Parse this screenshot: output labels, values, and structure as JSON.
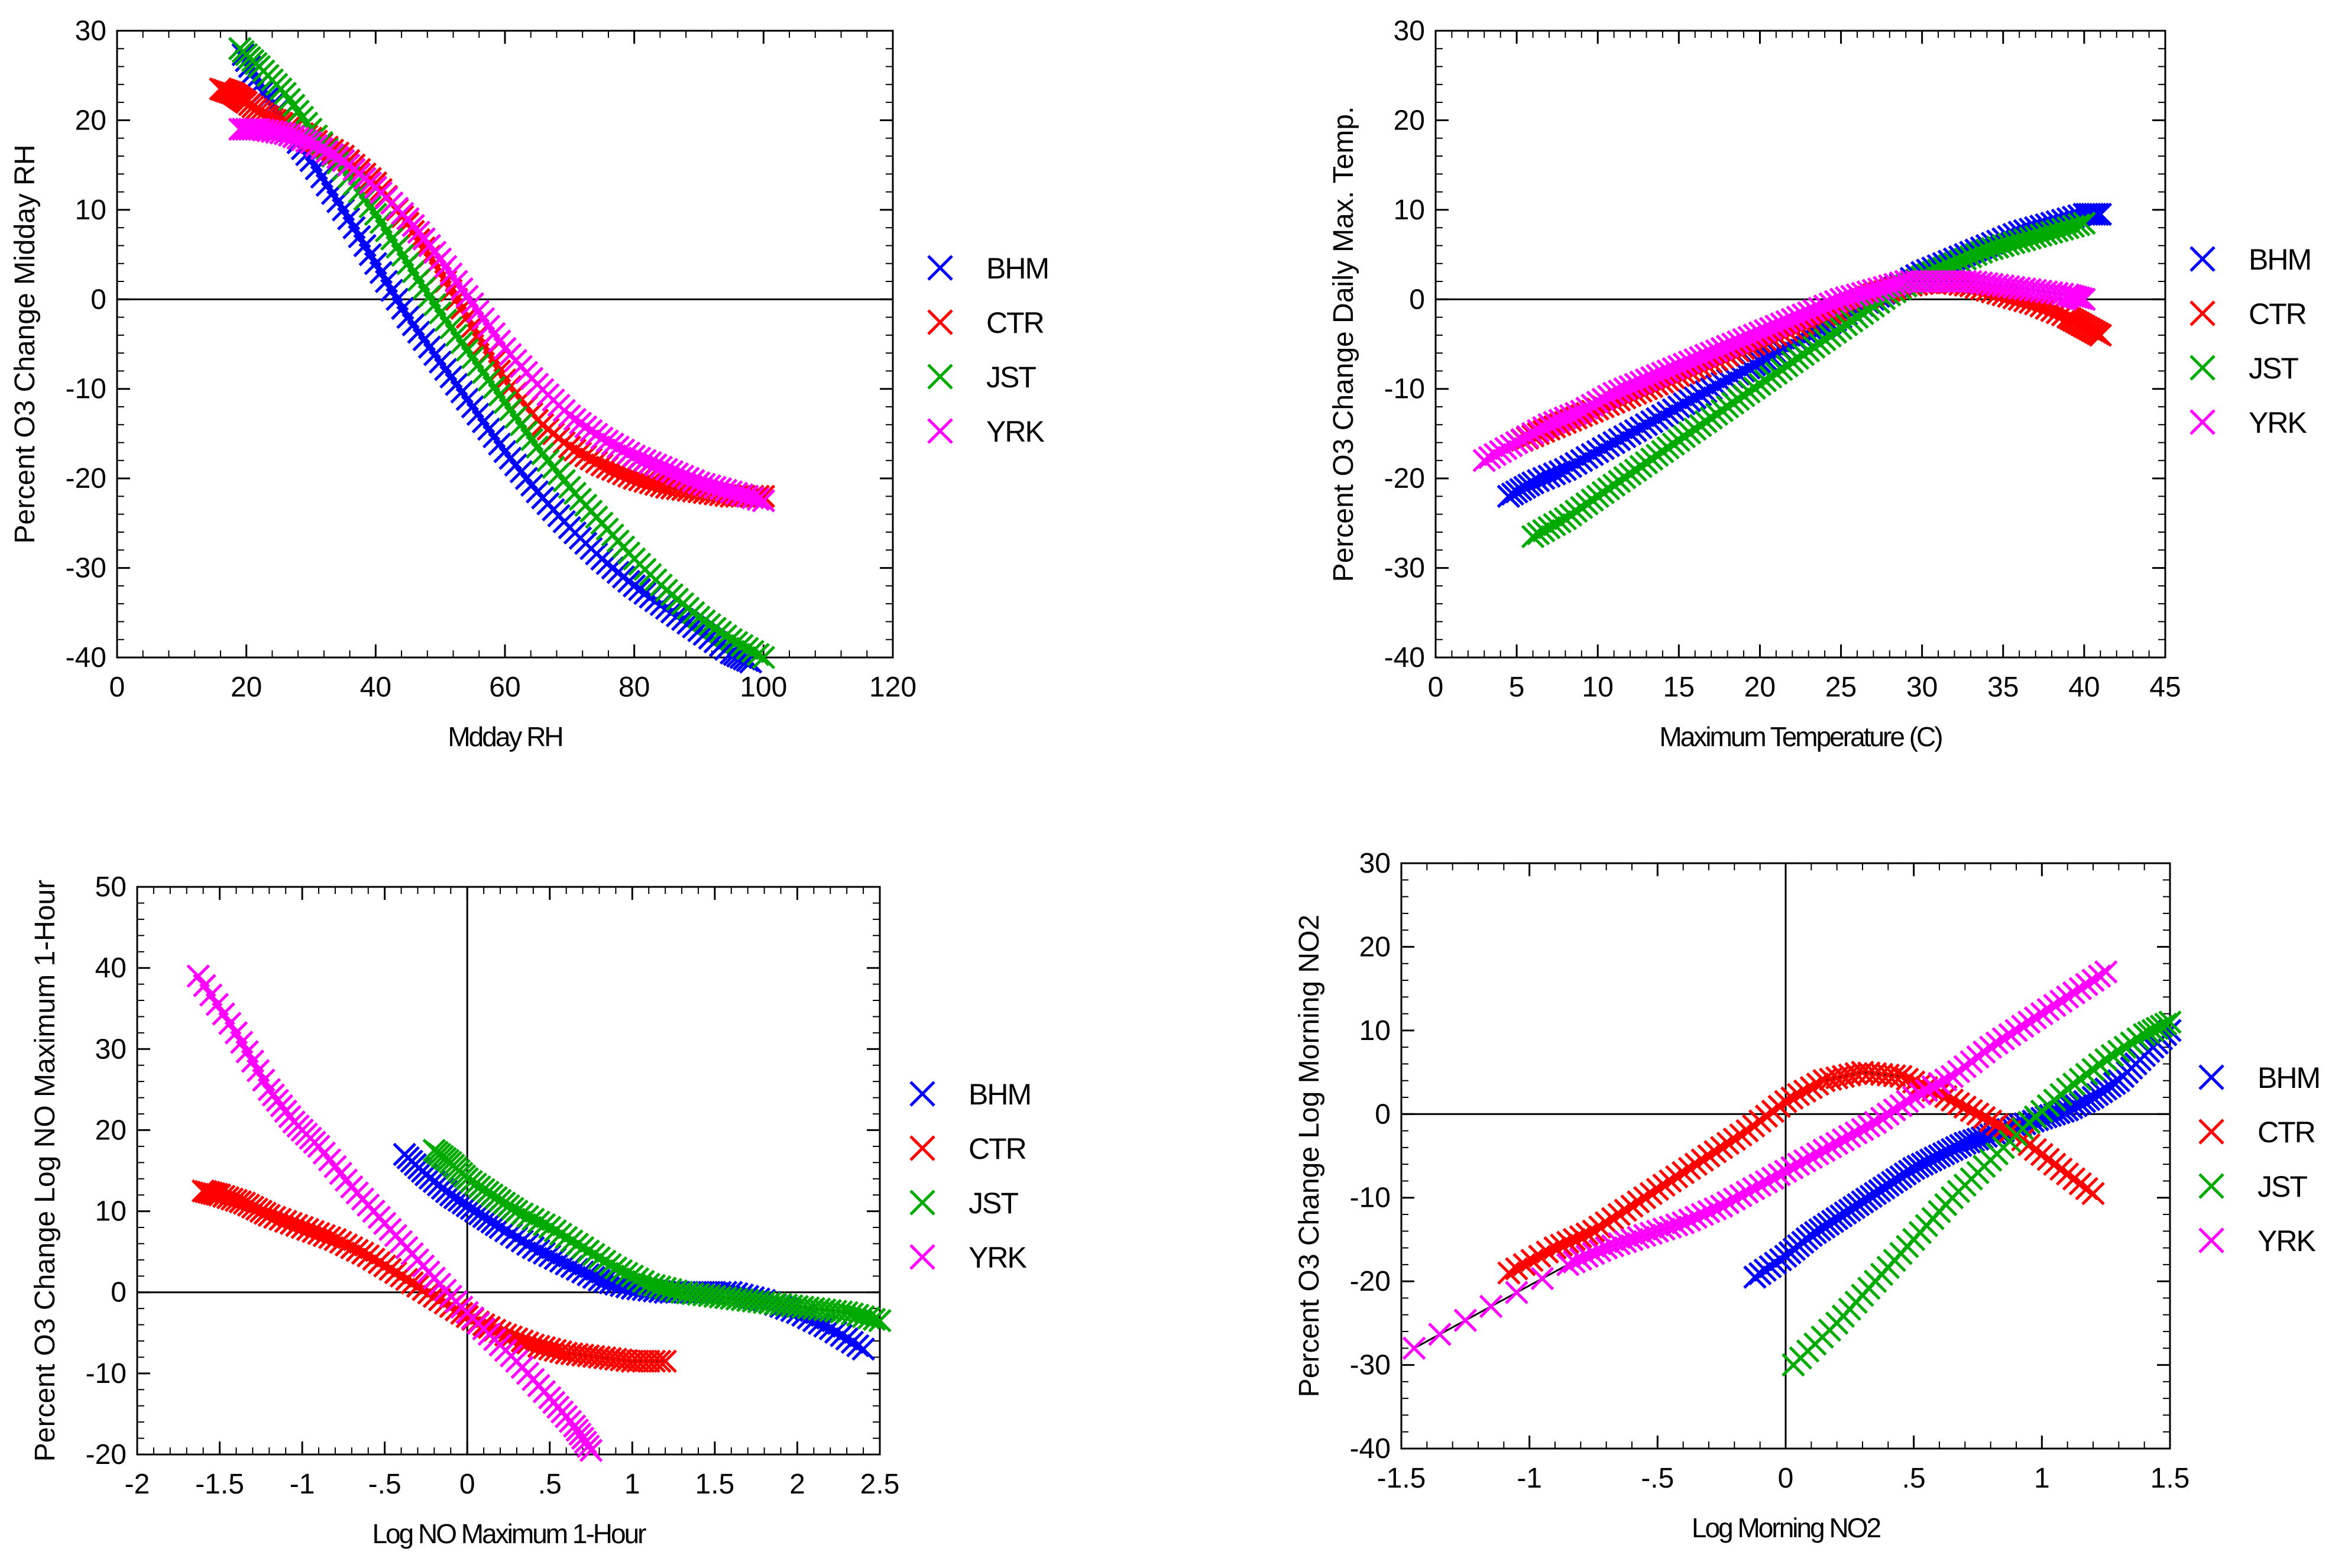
{
  "chart_data": [
    {
      "type": "scatter",
      "panel": "top-left",
      "xlabel": "Mdday RH",
      "ylabel": "Percent O3 Change Midday RH",
      "xlim": [
        0,
        120
      ],
      "ylim": [
        -40,
        30
      ],
      "xticks": [
        0,
        20,
        40,
        60,
        80,
        100,
        120
      ],
      "yticks": [
        -40,
        -30,
        -20,
        -10,
        0,
        10,
        20,
        30
      ],
      "xtick_labels": [
        "0",
        "20",
        "40",
        "60",
        "80",
        "100",
        "120"
      ],
      "ytick_labels": [
        "-40",
        "-30",
        "-20",
        "-10",
        "0",
        "10",
        "20",
        "30"
      ],
      "zero_lines": {
        "x": false,
        "y": true
      },
      "legend": [
        "BHM",
        "CTR",
        "JST",
        "YRK"
      ],
      "legend_position": "right",
      "series": [
        {
          "name": "BHM",
          "color": "#0000ff",
          "x": [
            19,
            22,
            26,
            30,
            35,
            40,
            45,
            50,
            55,
            60,
            65,
            70,
            75,
            80,
            85,
            90,
            95,
            98
          ],
          "y": [
            28,
            24,
            19.5,
            15.5,
            10,
            4,
            -2,
            -7,
            -12,
            -17,
            -21.5,
            -25.5,
            -29,
            -32,
            -34.5,
            -37,
            -39.5,
            -40.5
          ]
        },
        {
          "name": "CTR",
          "color": "#ff0000",
          "x": [
            16,
            18,
            20,
            23,
            26,
            30,
            35,
            40,
            45,
            50,
            55,
            60,
            65,
            70,
            75,
            80,
            85,
            90,
            95,
            100
          ],
          "y": [
            23.5,
            23,
            22,
            20.5,
            19.5,
            18,
            16,
            13,
            8.5,
            3,
            -3,
            -9,
            -13.5,
            -16.5,
            -18.5,
            -20,
            -21,
            -21.5,
            -22,
            -22
          ]
        },
        {
          "name": "JST",
          "color": "#00aa00",
          "x": [
            19,
            22,
            26,
            30,
            35,
            40,
            45,
            50,
            55,
            60,
            65,
            70,
            75,
            80,
            85,
            90,
            95,
            100
          ],
          "y": [
            28,
            26,
            23,
            19,
            14.5,
            9.5,
            4,
            -1.5,
            -6.5,
            -11.5,
            -16.5,
            -21,
            -25,
            -29,
            -32.5,
            -35.5,
            -38,
            -40
          ]
        },
        {
          "name": "YRK",
          "color": "#ff00ff",
          "x": [
            19,
            22,
            26,
            30,
            35,
            40,
            45,
            50,
            55,
            60,
            65,
            70,
            75,
            80,
            85,
            90,
            95,
            100
          ],
          "y": [
            19,
            19,
            18.5,
            17.5,
            15.5,
            12.5,
            9,
            4.5,
            -0.5,
            -5.5,
            -9.5,
            -13,
            -15.5,
            -17.5,
            -19,
            -20.5,
            -21.5,
            -22.5
          ]
        }
      ]
    },
    {
      "type": "scatter",
      "panel": "top-right",
      "xlabel": "Maximum Temperature (C)",
      "ylabel": "Percent O3 Change Daily Max. Temp.",
      "xlim": [
        0,
        45
      ],
      "ylim": [
        -40,
        30
      ],
      "xticks": [
        0,
        5,
        10,
        15,
        20,
        25,
        30,
        35,
        40,
        45
      ],
      "yticks": [
        -40,
        -30,
        -20,
        -10,
        0,
        10,
        20,
        30
      ],
      "xtick_labels": [
        "0",
        "5",
        "10",
        "15",
        "20",
        "25",
        "30",
        "35",
        "40",
        "45"
      ],
      "ytick_labels": [
        "-40",
        "-30",
        "-20",
        "-10",
        "0",
        "10",
        "20",
        "30"
      ],
      "zero_lines": {
        "x": false,
        "y": true
      },
      "legend": [
        "BHM",
        "CTR",
        "JST",
        "YRK"
      ],
      "legend_position": "right",
      "series": [
        {
          "name": "BHM",
          "color": "#0000ff",
          "x": [
            4.5,
            6,
            8,
            10,
            12,
            14,
            16,
            18,
            20,
            22,
            24,
            26,
            28,
            30,
            32,
            34,
            36,
            38,
            40,
            41
          ],
          "y": [
            -22,
            -20.5,
            -19,
            -17,
            -15,
            -13,
            -11,
            -9,
            -7,
            -5,
            -3,
            -1,
            1,
            3,
            4.5,
            6,
            7.5,
            8.5,
            9.5,
            9.5
          ]
        },
        {
          "name": "CTR",
          "color": "#ff0000",
          "x": [
            5,
            7,
            9,
            11,
            13,
            15,
            17,
            19,
            21,
            23,
            25,
            27,
            29,
            31,
            33,
            35,
            37,
            39,
            40,
            41
          ],
          "y": [
            -16,
            -14.5,
            -13,
            -11.5,
            -10,
            -8.5,
            -7,
            -5.5,
            -4,
            -2.5,
            -1,
            0.5,
            1.5,
            2,
            1.5,
            0.5,
            -0.5,
            -2,
            -3,
            -4
          ]
        },
        {
          "name": "JST",
          "color": "#00aa00",
          "x": [
            6,
            8,
            10,
            12,
            14,
            16,
            18,
            20,
            22,
            24,
            26,
            28,
            30,
            32,
            34,
            36,
            38,
            40
          ],
          "y": [
            -26.5,
            -24.5,
            -22,
            -19.5,
            -17,
            -14.5,
            -12,
            -9.5,
            -7,
            -4.5,
            -2,
            0.5,
            2.5,
            4,
            5.5,
            6.5,
            7.5,
            8.5
          ]
        },
        {
          "name": "YRK",
          "color": "#ff00ff",
          "x": [
            3,
            5,
            7,
            9,
            11,
            13,
            15,
            17,
            19,
            21,
            23,
            25,
            27,
            29,
            31,
            33,
            35,
            37,
            39,
            40
          ],
          "y": [
            -18,
            -16,
            -14,
            -12.5,
            -10.5,
            -9,
            -7.5,
            -6,
            -4.5,
            -3,
            -1.5,
            0,
            1,
            2,
            2,
            2,
            1.5,
            1,
            0.5,
            0
          ]
        }
      ]
    },
    {
      "type": "scatter",
      "panel": "bottom-left",
      "xlabel": "Log NO Maximum 1-Hour",
      "ylabel": "Percent O3 Change Log NO Maximum 1-Hour",
      "xlim": [
        -2,
        2.5
      ],
      "ylim": [
        -20,
        50
      ],
      "xticks": [
        -2,
        -1.5,
        -1,
        -0.5,
        0,
        0.5,
        1,
        1.5,
        2,
        2.5
      ],
      "yticks": [
        -20,
        -10,
        0,
        10,
        20,
        30,
        40,
        50
      ],
      "xtick_labels": [
        "-2",
        "-1.5",
        "-1",
        "-.5",
        "0",
        ".5",
        "1",
        "1.5",
        "2",
        "2.5"
      ],
      "ytick_labels": [
        "-20",
        "-10",
        "0",
        "10",
        "20",
        "30",
        "40",
        "50"
      ],
      "zero_lines": {
        "x": true,
        "y": true
      },
      "legend": [
        "BHM",
        "CTR",
        "JST",
        "YRK"
      ],
      "legend_position": "right",
      "series": [
        {
          "name": "BHM",
          "color": "#0000ff",
          "x": [
            -0.38,
            -0.25,
            -0.1,
            0.05,
            0.2,
            0.4,
            0.6,
            0.8,
            1.0,
            1.2,
            1.4,
            1.6,
            1.8,
            2.0,
            2.2,
            2.4
          ],
          "y": [
            17,
            14.5,
            12,
            10,
            8,
            5.5,
            3.5,
            1.5,
            0.5,
            0,
            0,
            0,
            -1,
            -2.5,
            -4.5,
            -7
          ]
        },
        {
          "name": "CTR",
          "color": "#ff0000",
          "x": [
            -1.6,
            -1.5,
            -1.35,
            -1.2,
            -1.0,
            -0.8,
            -0.6,
            -0.4,
            -0.2,
            0,
            0.2,
            0.4,
            0.6,
            0.8,
            1.0,
            1.2
          ],
          "y": [
            12.5,
            12,
            11,
            9.5,
            8,
            6.5,
            4.5,
            2,
            -0.5,
            -3,
            -5,
            -6.5,
            -7.5,
            -8,
            -8.5,
            -8.5
          ]
        },
        {
          "name": "JST",
          "color": "#00aa00",
          "x": [
            -0.2,
            -0.1,
            0,
            0.15,
            0.3,
            0.5,
            0.7,
            0.9,
            1.1,
            1.3,
            1.5,
            1.7,
            1.9,
            2.1,
            2.3,
            2.5
          ],
          "y": [
            17.5,
            16,
            14,
            12,
            10,
            8,
            5.5,
            3,
            1,
            0,
            -0.5,
            -1,
            -1.5,
            -2,
            -2.5,
            -3.5
          ]
        },
        {
          "name": "YRK",
          "color": "#ff00ff",
          "x": [
            -1.63,
            -1.4,
            -1.2,
            -1.05,
            -0.9,
            -0.7,
            -0.5,
            -0.3,
            -0.1,
            0.1,
            0.3,
            0.5,
            0.65,
            0.75
          ],
          "y": [
            39,
            32,
            25,
            21,
            18,
            13,
            8.5,
            4,
            -0.5,
            -4.5,
            -8.5,
            -13,
            -16.5,
            -19.5
          ]
        }
      ]
    },
    {
      "type": "scatter",
      "panel": "bottom-right",
      "xlabel": "Log Morning NO2",
      "ylabel": "Percent O3 Change Log Morning NO2",
      "xlim": [
        -1.5,
        1.5
      ],
      "ylim": [
        -40,
        30
      ],
      "xticks": [
        -1.5,
        -1,
        -0.5,
        0,
        0.5,
        1,
        1.5
      ],
      "yticks": [
        -40,
        -30,
        -20,
        -10,
        0,
        10,
        20,
        30
      ],
      "xtick_labels": [
        "-1.5",
        "-1",
        "-.5",
        "0",
        ".5",
        "1",
        "1.5"
      ],
      "ytick_labels": [
        "-40",
        "-30",
        "-20",
        "-10",
        "0",
        "10",
        "20",
        "30"
      ],
      "zero_lines": {
        "x": true,
        "y": true
      },
      "legend": [
        "BHM",
        "CTR",
        "JST",
        "YRK"
      ],
      "legend_position": "right",
      "series": [
        {
          "name": "BHM",
          "color": "#0000ff",
          "x": [
            -0.12,
            0,
            0.1,
            0.2,
            0.3,
            0.4,
            0.5,
            0.6,
            0.7,
            0.8,
            0.9,
            1.0,
            1.1,
            1.2,
            1.3,
            1.4,
            1.5
          ],
          "y": [
            -19.5,
            -17,
            -14.5,
            -12.5,
            -10.5,
            -8.5,
            -6.5,
            -5,
            -3.5,
            -2.5,
            -1.5,
            -0.5,
            0.5,
            2,
            4,
            7,
            10
          ]
        },
        {
          "name": "CTR",
          "color": "#ff0000",
          "x": [
            -1.08,
            -0.9,
            -0.75,
            -0.6,
            -0.45,
            -0.3,
            -0.15,
            0,
            0.15,
            0.3,
            0.45,
            0.6,
            0.75,
            0.9,
            1.05,
            1.2
          ],
          "y": [
            -19,
            -16,
            -14,
            -11,
            -8,
            -5,
            -2,
            1.5,
            4,
            5,
            4.5,
            2.5,
            0,
            -2.5,
            -6,
            -9.5
          ]
        },
        {
          "name": "JST",
          "color": "#00aa00",
          "x": [
            0.03,
            0.2,
            0.35,
            0.5,
            0.65,
            0.8,
            0.95,
            1.1,
            1.25,
            1.4,
            1.5
          ],
          "y": [
            -30,
            -25,
            -20,
            -15,
            -10,
            -5.5,
            -1,
            3,
            6.5,
            9.5,
            11
          ]
        },
        {
          "name": "YRK",
          "color": "#ff00ff",
          "x": [
            -1.45,
            -0.85,
            -0.7,
            -0.55,
            -0.4,
            -0.25,
            -0.1,
            0.05,
            0.2,
            0.35,
            0.5,
            0.65,
            0.8,
            0.95,
            1.1,
            1.25
          ],
          "y": [
            -28,
            -18,
            -16,
            -14.5,
            -13,
            -11,
            -8.5,
            -6,
            -3.5,
            -1,
            2,
            4.5,
            8,
            11,
            14,
            17
          ]
        }
      ]
    }
  ]
}
